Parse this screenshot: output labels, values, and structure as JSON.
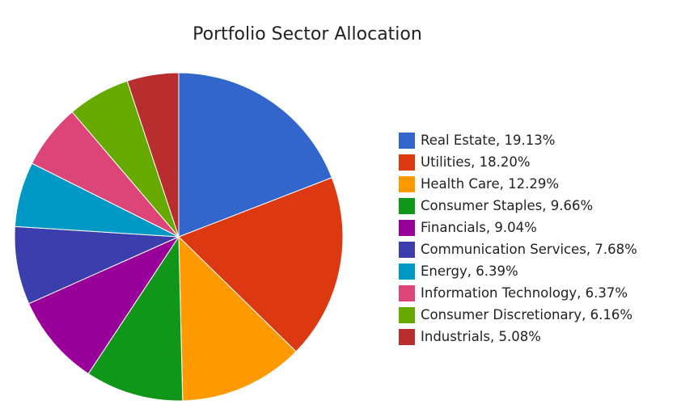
{
  "chart_data": {
    "type": "pie",
    "title": "Portfolio Sector Allocation",
    "legend_position": "right",
    "slices": [
      {
        "label": "Real Estate, 19.13%",
        "value": 19.13,
        "color": "#3366cc"
      },
      {
        "label": "Utilities, 18.20%",
        "value": 18.2,
        "color": "#dc3912"
      },
      {
        "label": "Health Care, 12.29%",
        "value": 12.29,
        "color": "#ff9900"
      },
      {
        "label": "Consumer Staples, 9.66%",
        "value": 9.66,
        "color": "#109618"
      },
      {
        "label": "Financials, 9.04%",
        "value": 9.04,
        "color": "#990099"
      },
      {
        "label": "Communication Services, 7.68%",
        "value": 7.68,
        "color": "#3b3eac"
      },
      {
        "label": "Energy, 6.39%",
        "value": 6.39,
        "color": "#0099c6"
      },
      {
        "label": "Information Technology, 6.37%",
        "value": 6.37,
        "color": "#dd4477"
      },
      {
        "label": "Consumer Discretionary, 6.16%",
        "value": 6.16,
        "color": "#66aa00"
      },
      {
        "label": "Industrials, 5.08%",
        "value": 5.08,
        "color": "#b82e2e"
      }
    ]
  }
}
